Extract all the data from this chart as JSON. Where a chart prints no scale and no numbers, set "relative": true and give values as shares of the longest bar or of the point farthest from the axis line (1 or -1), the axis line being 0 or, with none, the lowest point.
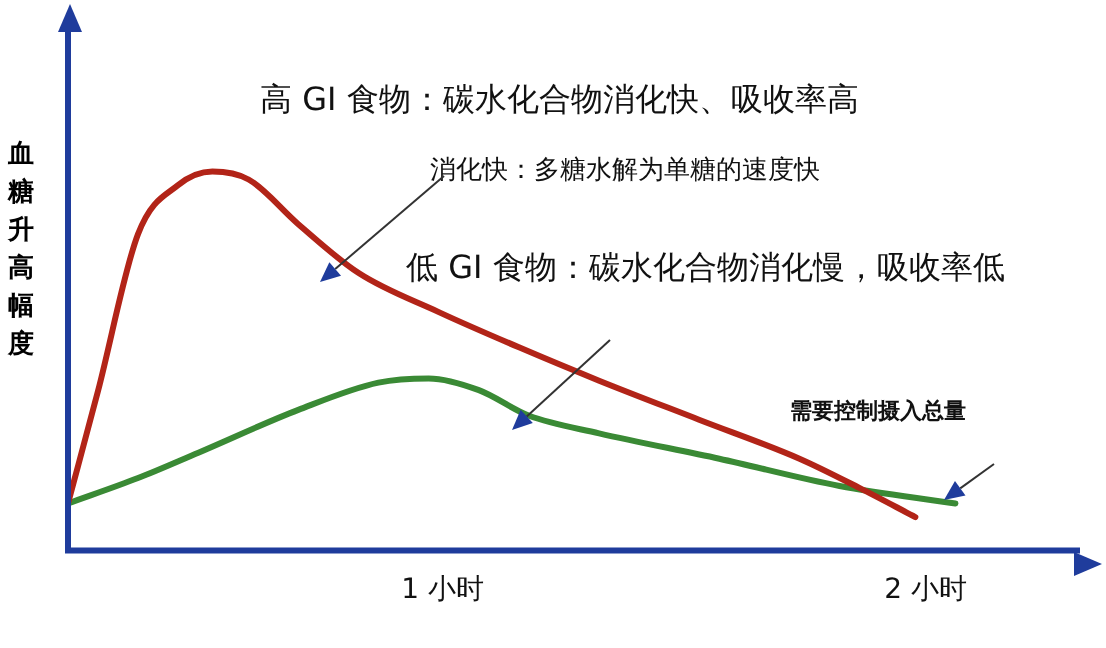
{
  "chart_data": {
    "type": "line",
    "relative": true,
    "ylabel": "血糖升高幅度",
    "marker": "none",
    "grid": false,
    "legend": false,
    "xlim": [
      0.224,
      2.32
    ],
    "xticks": [
      {
        "value": 1,
        "label": "1 小时"
      },
      {
        "value": 2,
        "label": "2 小时"
      }
    ],
    "annotations": [
      "高 GI 食物：碳水化合物消化快、吸收率高",
      "消化快：多糖水解为单糖的速度快",
      "低 GI 食物：碳水化合物消化慢，吸收率低",
      "需要控制摄入总量"
    ],
    "series": [
      {
        "color": "#b22418",
        "x": [
          0.224,
          0.286,
          0.369,
          0.452,
          0.523,
          0.598,
          0.701,
          0.826,
          0.992,
          1.158,
          1.324,
          1.531,
          1.739,
          1.863,
          1.979
        ],
        "values": [
          0.124,
          0.42,
          0.835,
          0.964,
          1.0,
          0.979,
          0.861,
          0.732,
          0.629,
          0.536,
          0.448,
          0.345,
          0.242,
          0.165,
          0.088
        ]
      },
      {
        "color": "#3a8a35",
        "x": [
          0.224,
          0.369,
          0.494,
          0.701,
          0.867,
          0.971,
          1.075,
          1.178,
          1.324,
          1.573,
          1.822,
          2.062
        ],
        "values": [
          0.124,
          0.191,
          0.258,
          0.371,
          0.443,
          0.454,
          0.423,
          0.356,
          0.309,
          0.242,
          0.17,
          0.124
        ]
      }
    ]
  }
}
